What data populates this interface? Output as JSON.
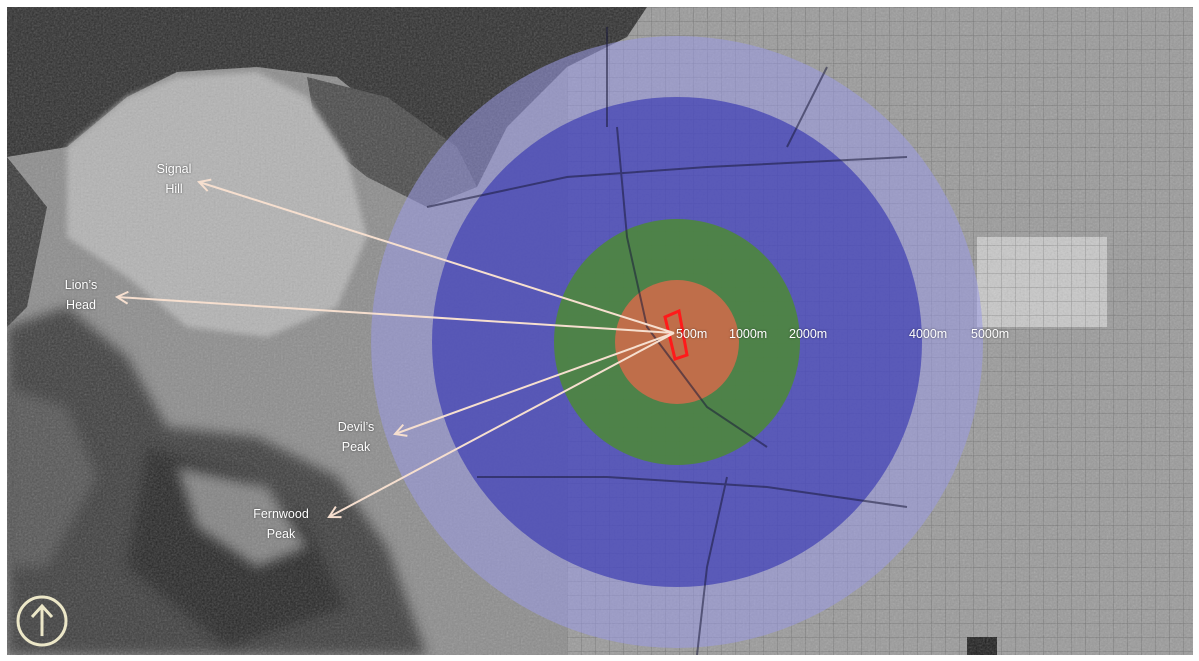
{
  "map": {
    "place_labels": [
      {
        "id": "signal-hill",
        "text": "Signal\nHill"
      },
      {
        "id": "lions-head",
        "text": "Lion’s\nHead"
      },
      {
        "id": "devils-peak",
        "text": "Devil’s\nPeak"
      },
      {
        "id": "fernwood-peak",
        "text": "Fernwood\nPeak"
      }
    ],
    "rings": [
      {
        "label": "500m",
        "color": "#d86a4a"
      },
      {
        "label": "1000m",
        "color": "#4c8a35"
      },
      {
        "label": "2000m",
        "color": "#2b2bb8"
      },
      {
        "label": "4000m",
        "color": "#6a6ad8"
      },
      {
        "label": "5000m",
        "color": "#9a9ae6"
      }
    ],
    "site_marker_color": "#ff1a1a",
    "arrow_color": "#f6dfcf",
    "north_arrow_icon": "north-arrow-icon"
  }
}
